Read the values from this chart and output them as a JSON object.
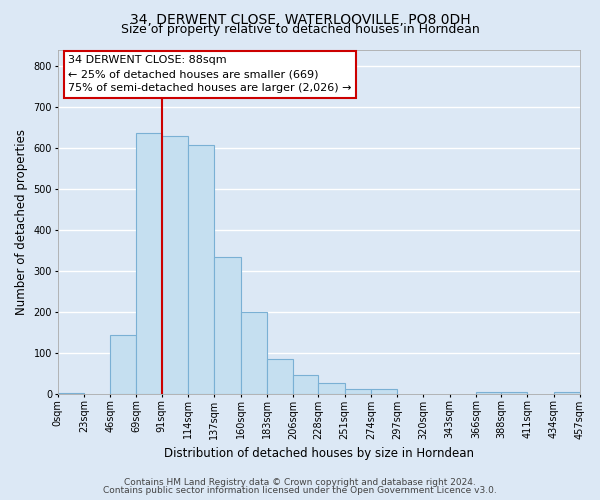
{
  "title": "34, DERWENT CLOSE, WATERLOOVILLE, PO8 0DH",
  "subtitle": "Size of property relative to detached houses in Horndean",
  "xlabel": "Distribution of detached houses by size in Horndean",
  "ylabel": "Number of detached properties",
  "bin_edges": [
    0,
    23,
    46,
    69,
    91,
    114,
    137,
    160,
    183,
    206,
    228,
    251,
    274,
    297,
    320,
    343,
    366,
    388,
    411,
    434,
    457
  ],
  "bin_labels": [
    "0sqm",
    "23sqm",
    "46sqm",
    "69sqm",
    "91sqm",
    "114sqm",
    "137sqm",
    "160sqm",
    "183sqm",
    "206sqm",
    "228sqm",
    "251sqm",
    "274sqm",
    "297sqm",
    "320sqm",
    "343sqm",
    "366sqm",
    "388sqm",
    "411sqm",
    "434sqm",
    "457sqm"
  ],
  "bar_heights": [
    3,
    0,
    143,
    636,
    630,
    608,
    333,
    200,
    84,
    46,
    27,
    12,
    12,
    0,
    0,
    0,
    5,
    5,
    0,
    4
  ],
  "bar_color": "#c5dff0",
  "bar_edge_color": "#7ab0d4",
  "vline_x": 91,
  "vline_color": "#cc0000",
  "annotation_title": "34 DERWENT CLOSE: 88sqm",
  "annotation_line1": "← 25% of detached houses are smaller (669)",
  "annotation_line2": "75% of semi-detached houses are larger (2,026) →",
  "annotation_box_facecolor": "#ffffff",
  "annotation_box_edgecolor": "#cc0000",
  "ylim": [
    0,
    840
  ],
  "yticks": [
    0,
    100,
    200,
    300,
    400,
    500,
    600,
    700,
    800
  ],
  "footer_line1": "Contains HM Land Registry data © Crown copyright and database right 2024.",
  "footer_line2": "Contains public sector information licensed under the Open Government Licence v3.0.",
  "background_color": "#dce8f5",
  "plot_bg_color": "#dce8f5",
  "grid_color": "#ffffff",
  "title_fontsize": 10,
  "subtitle_fontsize": 9,
  "axis_label_fontsize": 8.5,
  "tick_fontsize": 7,
  "annotation_fontsize": 8,
  "footer_fontsize": 6.5
}
